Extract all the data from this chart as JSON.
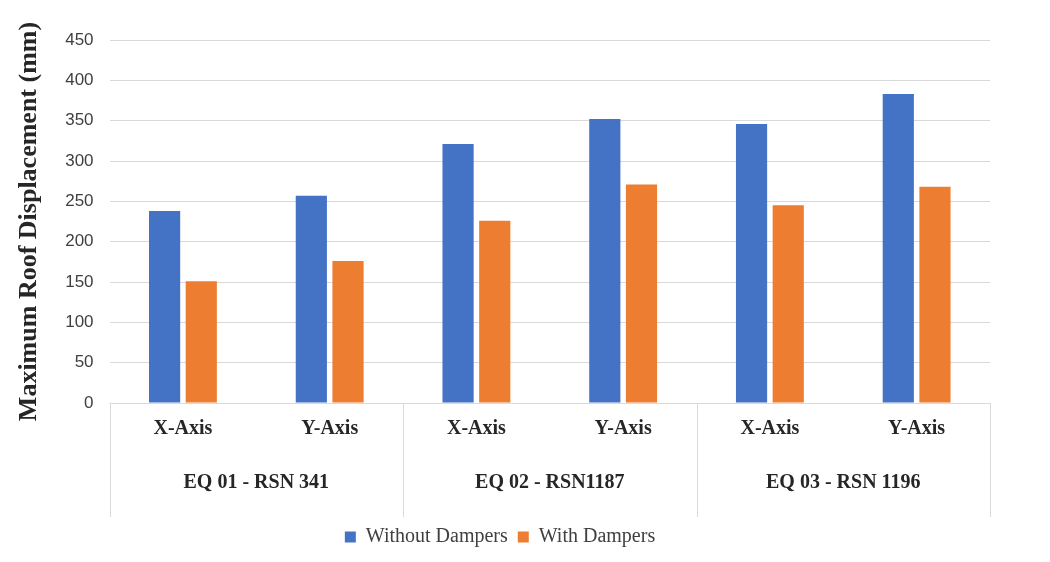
{
  "chart_data": {
    "type": "bar",
    "ylabel": "Maximum Roof Displacement (mm)",
    "categories": [
      "X-Axis",
      "Y-Axis",
      "X-Axis",
      "Y-Axis",
      "X-Axis",
      "Y-Axis"
    ],
    "series": [
      {
        "name": "Without Dampers",
        "color": "#4472c4",
        "values": [
          238,
          257,
          321,
          352,
          346,
          383
        ]
      },
      {
        "name": "With Dampers",
        "color": "#ed7d31",
        "values": [
          151,
          176,
          226,
          271,
          245,
          268
        ]
      }
    ],
    "annotations": [
      "EQ 01 - RSN 341",
      "EQ 02 - RSN1187",
      "EQ 03 - RSN 1196"
    ],
    "ylim": [
      0,
      450
    ],
    "yticks": [
      0,
      50,
      100,
      150,
      200,
      250,
      300,
      350,
      400,
      450
    ],
    "grid": "y",
    "legend": "bottom"
  }
}
